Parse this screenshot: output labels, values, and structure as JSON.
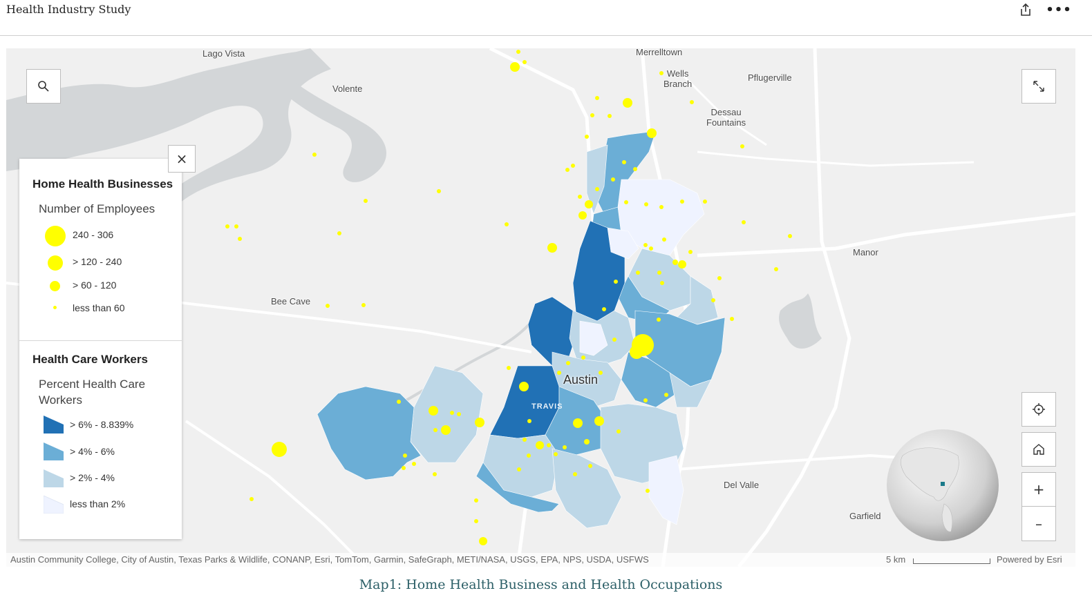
{
  "header": {
    "title": "Health Industry Study",
    "share_icon": "share-icon",
    "more_icon": "more-options-icon",
    "more_glyph": "•••"
  },
  "map": {
    "places": [
      {
        "name": "Lago Vista"
      },
      {
        "name": "Volente"
      },
      {
        "name": "Merrelltown"
      },
      {
        "name": "Wells\nBranch"
      },
      {
        "name": "Pflugerville"
      },
      {
        "name": "Dessau\nFountains"
      },
      {
        "name": "Manor"
      },
      {
        "name": "Bee Cave"
      },
      {
        "name": "Del Valle"
      },
      {
        "name": "Garfield"
      }
    ],
    "city_label": "Austin",
    "county_label": "TRAVIS",
    "controls": {
      "search_icon": "search-icon",
      "expand_icon": "expand-icon",
      "locate_icon": "locate-icon",
      "home_icon": "home-icon",
      "zoom_in_label": "+",
      "zoom_out_label": "–",
      "close_legend_label": "×"
    },
    "attribution": "Austin Community College, City of Austin, Texas Parks & Wildlife, CONANP, Esri, TomTom, Garmin, SafeGraph, METI/NASA, USGS, EPA, NPS, USDA, USFWS",
    "scale_label": "5 km",
    "powered_by": "Powered by Esri",
    "colors": {
      "land": "#f0f0f0",
      "water": "#d3d6d8",
      "roads": "#ffffff",
      "dot": "#ffff00",
      "class_high": "#2171b5",
      "class_mid": "#6baed6",
      "class_low": "#bdd7e7",
      "class_lowest": "#eff3ff"
    }
  },
  "legend": {
    "layer1_title": "Home Health Businesses",
    "layer1_subtitle": "Number of Employees",
    "layer1_items": [
      {
        "label": "240 - 306"
      },
      {
        "label": "> 120 - 240"
      },
      {
        "label": "> 60 - 120"
      },
      {
        "label": "less than 60"
      }
    ],
    "layer2_title": "Health Care Workers",
    "layer2_subtitle": "Percent Health Care Workers",
    "layer2_items": [
      {
        "label": "> 6% - 8.839%",
        "color": "#2171b5"
      },
      {
        "label": "> 4% - 6%",
        "color": "#6baed6"
      },
      {
        "label": "> 2% - 4%",
        "color": "#bdd7e7"
      },
      {
        "label": "less than 2%",
        "color": "#eff3ff"
      }
    ]
  },
  "caption": "Map1: Home Health Business and Health Occupations"
}
